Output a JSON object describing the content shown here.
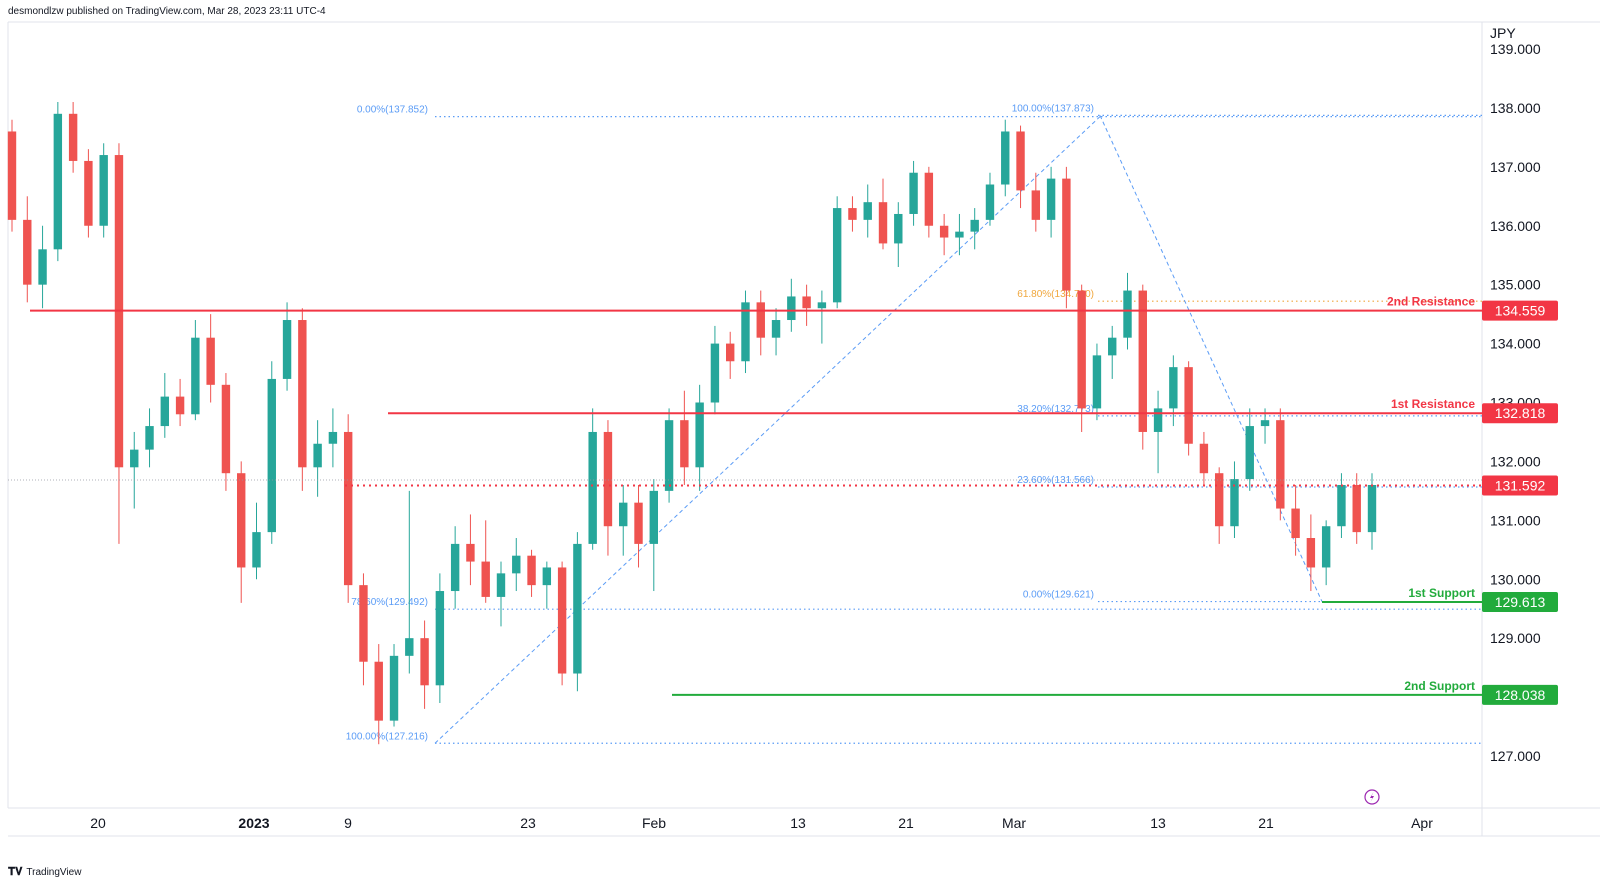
{
  "header": {
    "published": "desmondlzw published on TradingView.com, Mar 28, 2023 23:11 UTC-4"
  },
  "footer": {
    "logo_text": "TradingView",
    "logo_icon": "tradingview-logo-icon"
  },
  "chart_data": {
    "type": "candlestick",
    "currency_label": "JPY",
    "ylim": [
      126.1,
      139.3
    ],
    "y_ticks": [
      "127.000",
      "128.000",
      "129.000",
      "130.000",
      "131.000",
      "132.000",
      "133.000",
      "134.000",
      "135.000",
      "136.000",
      "137.000",
      "138.000",
      "139.000"
    ],
    "x_ticks": [
      {
        "label": "20",
        "bold": false
      },
      {
        "label": "2023",
        "bold": true
      },
      {
        "label": "9",
        "bold": false
      },
      {
        "label": "23",
        "bold": false
      },
      {
        "label": "Feb",
        "bold": false
      },
      {
        "label": "13",
        "bold": false
      },
      {
        "label": "21",
        "bold": false
      },
      {
        "label": "Mar",
        "bold": false
      },
      {
        "label": "13",
        "bold": false
      },
      {
        "label": "21",
        "bold": false
      },
      {
        "label": "Apr",
        "bold": false
      }
    ],
    "colors": {
      "up": "#26a69a",
      "down": "#ef5350",
      "resistance": "#f23645",
      "support": "#22ab3c",
      "fib": "#5b9cf6",
      "fib_618": "#f0a73d"
    },
    "levels": [
      {
        "name": "2nd Resistance",
        "value": 134.559,
        "label": "134.559",
        "kind": "resistance",
        "style": "solid"
      },
      {
        "name": "1st Resistance",
        "value": 132.818,
        "label": "132.818",
        "kind": "resistance",
        "style": "solid"
      },
      {
        "name": "",
        "value": 131.592,
        "label": "131.592",
        "kind": "resistance",
        "style": "dotted"
      },
      {
        "name": "1st Support",
        "value": 129.613,
        "label": "129.613",
        "kind": "support",
        "style": "solid"
      },
      {
        "name": "2nd Support",
        "value": 128.038,
        "label": "128.038",
        "kind": "support",
        "style": "solid"
      }
    ],
    "fib_levels": [
      {
        "text": "0.00%(137.852)",
        "value": 137.852
      },
      {
        "text": "78.60%(129.492)",
        "value": 129.492
      },
      {
        "text": "100.00%(127.216)",
        "value": 127.216
      },
      {
        "text": "100.00%(137.873)",
        "value": 137.873
      },
      {
        "text": "61.80%(134.720)",
        "value": 134.72
      },
      {
        "text": "38.20%(132.773)",
        "value": 132.773
      },
      {
        "text": "23.60%(131.566)",
        "value": 131.566
      },
      {
        "text": "0.00%(129.621)",
        "value": 129.621
      }
    ],
    "ohlc_approx": [
      [
        137.6,
        137.8,
        135.9,
        136.1
      ],
      [
        136.1,
        136.5,
        134.7,
        135.0
      ],
      [
        135.0,
        136.0,
        134.6,
        135.6
      ],
      [
        135.6,
        138.1,
        135.4,
        137.9
      ],
      [
        137.9,
        138.1,
        136.9,
        137.1
      ],
      [
        137.1,
        137.3,
        135.8,
        136.0
      ],
      [
        136.0,
        137.4,
        135.8,
        137.2
      ],
      [
        137.2,
        137.4,
        130.6,
        131.9
      ],
      [
        131.9,
        132.5,
        131.2,
        132.2
      ],
      [
        132.2,
        132.9,
        131.9,
        132.6
      ],
      [
        132.6,
        133.5,
        132.4,
        133.1
      ],
      [
        133.1,
        133.4,
        132.6,
        132.8
      ],
      [
        132.8,
        134.4,
        132.7,
        134.1
      ],
      [
        134.1,
        134.5,
        133.0,
        133.3
      ],
      [
        133.3,
        133.5,
        131.5,
        131.8
      ],
      [
        131.8,
        132.0,
        129.6,
        130.2
      ],
      [
        130.2,
        131.3,
        130.0,
        130.8
      ],
      [
        130.8,
        133.7,
        130.6,
        133.4
      ],
      [
        133.4,
        134.7,
        133.2,
        134.4
      ],
      [
        134.4,
        134.6,
        131.5,
        131.9
      ],
      [
        131.9,
        132.7,
        131.4,
        132.3
      ],
      [
        132.3,
        132.9,
        131.9,
        132.5
      ],
      [
        132.5,
        132.8,
        129.6,
        129.9
      ],
      [
        129.9,
        130.1,
        128.2,
        128.6
      ],
      [
        128.6,
        128.9,
        127.2,
        127.6
      ],
      [
        127.6,
        128.9,
        127.5,
        128.7
      ],
      [
        128.7,
        131.5,
        128.4,
        129.0
      ],
      [
        129.0,
        129.3,
        127.8,
        128.2
      ],
      [
        128.2,
        130.1,
        127.9,
        129.8
      ],
      [
        129.8,
        130.9,
        129.5,
        130.6
      ],
      [
        130.6,
        131.1,
        129.9,
        130.3
      ],
      [
        130.3,
        131.0,
        129.6,
        129.7
      ],
      [
        129.7,
        130.3,
        129.2,
        130.1
      ],
      [
        130.1,
        130.7,
        129.8,
        130.4
      ],
      [
        130.4,
        130.5,
        129.7,
        129.9
      ],
      [
        129.9,
        130.3,
        129.5,
        130.2
      ],
      [
        130.2,
        130.3,
        128.2,
        128.4
      ],
      [
        128.4,
        130.8,
        128.1,
        130.6
      ],
      [
        130.6,
        132.9,
        130.5,
        132.5
      ],
      [
        132.5,
        132.7,
        130.4,
        130.9
      ],
      [
        130.9,
        131.6,
        130.4,
        131.3
      ],
      [
        131.3,
        131.6,
        130.2,
        130.6
      ],
      [
        130.6,
        131.7,
        129.8,
        131.5
      ],
      [
        131.5,
        132.9,
        131.3,
        132.7
      ],
      [
        132.7,
        133.2,
        131.6,
        131.9
      ],
      [
        131.9,
        133.3,
        131.5,
        133.0
      ],
      [
        133.0,
        134.3,
        132.8,
        134.0
      ],
      [
        134.0,
        134.2,
        133.4,
        133.7
      ],
      [
        133.7,
        134.9,
        133.5,
        134.7
      ],
      [
        134.7,
        134.9,
        133.8,
        134.1
      ],
      [
        134.1,
        134.6,
        133.8,
        134.4
      ],
      [
        134.4,
        135.1,
        134.2,
        134.8
      ],
      [
        134.8,
        135.0,
        134.3,
        134.6
      ],
      [
        134.6,
        134.9,
        134.0,
        134.7
      ],
      [
        134.7,
        136.5,
        134.6,
        136.3
      ],
      [
        136.3,
        136.5,
        135.9,
        136.1
      ],
      [
        136.1,
        136.7,
        135.8,
        136.4
      ],
      [
        136.4,
        136.8,
        135.6,
        135.7
      ],
      [
        135.7,
        136.4,
        135.3,
        136.2
      ],
      [
        136.2,
        137.1,
        136.0,
        136.9
      ],
      [
        136.9,
        137.0,
        135.8,
        136.0
      ],
      [
        136.0,
        136.2,
        135.5,
        135.8
      ],
      [
        135.8,
        136.2,
        135.5,
        135.9
      ],
      [
        135.9,
        136.3,
        135.6,
        136.1
      ],
      [
        136.1,
        136.9,
        136.0,
        136.7
      ],
      [
        136.7,
        137.8,
        136.5,
        137.6
      ],
      [
        137.6,
        137.7,
        136.3,
        136.6
      ],
      [
        136.6,
        136.9,
        135.9,
        136.1
      ],
      [
        136.1,
        137.0,
        135.8,
        136.8
      ],
      [
        136.8,
        137.0,
        134.6,
        134.9
      ],
      [
        134.9,
        135.0,
        132.5,
        132.9
      ],
      [
        132.9,
        134.0,
        132.7,
        133.8
      ],
      [
        133.8,
        134.3,
        133.4,
        134.1
      ],
      [
        134.1,
        135.2,
        133.9,
        134.9
      ],
      [
        134.9,
        135.0,
        132.2,
        132.5
      ],
      [
        132.5,
        133.2,
        131.8,
        132.9
      ],
      [
        132.9,
        133.8,
        132.6,
        133.6
      ],
      [
        133.6,
        133.7,
        132.1,
        132.3
      ],
      [
        132.3,
        132.5,
        131.6,
        131.8
      ],
      [
        131.8,
        131.9,
        130.6,
        130.9
      ],
      [
        130.9,
        132.0,
        130.7,
        131.7
      ],
      [
        131.7,
        132.9,
        131.5,
        132.6
      ],
      [
        132.6,
        132.9,
        132.3,
        132.7
      ],
      [
        132.7,
        132.9,
        131.0,
        131.2
      ],
      [
        131.2,
        131.6,
        130.4,
        130.7
      ],
      [
        130.7,
        131.1,
        129.8,
        130.2
      ],
      [
        130.2,
        131.0,
        129.9,
        130.9
      ],
      [
        130.9,
        131.8,
        130.7,
        131.6
      ],
      [
        131.6,
        131.8,
        130.6,
        130.8
      ],
      [
        130.8,
        131.8,
        130.5,
        131.6
      ]
    ]
  }
}
